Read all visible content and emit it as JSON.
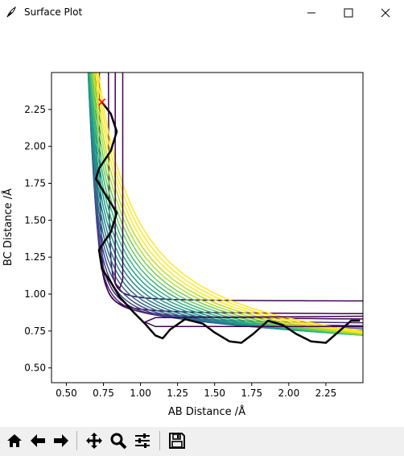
{
  "window": {
    "title": "Surface Plot",
    "icon": "feather-icon"
  },
  "window_controls": [
    "minimize-icon",
    "maximize-icon",
    "close-icon"
  ],
  "toolbar": {
    "buttons": [
      {
        "name": "home-button",
        "icon": "home-icon"
      },
      {
        "name": "back-button",
        "icon": "arrow-left-icon"
      },
      {
        "name": "forward-button",
        "icon": "arrow-right-icon"
      },
      {
        "name": "pan-button",
        "icon": "move-icon"
      },
      {
        "name": "zoom-button",
        "icon": "magnifier-icon"
      },
      {
        "name": "subplots-button",
        "icon": "sliders-icon"
      },
      {
        "name": "save-button",
        "icon": "floppy-disk-icon"
      }
    ]
  },
  "chart_data": {
    "type": "contour",
    "title": "",
    "xlabel": "AB Distance /Å",
    "ylabel": "BC Distance /Å",
    "xlim": [
      0.4,
      2.5
    ],
    "ylim": [
      0.4,
      2.5
    ],
    "xticks": [
      0.5,
      0.75,
      1.0,
      1.25,
      1.5,
      1.75,
      2.0,
      2.25
    ],
    "yticks": [
      0.5,
      0.75,
      1.0,
      1.25,
      1.5,
      1.75,
      2.0,
      2.25
    ],
    "xtick_labels": [
      "0.50",
      "0.75",
      "1.00",
      "1.25",
      "1.50",
      "1.75",
      "2.00",
      "2.25"
    ],
    "ytick_labels": [
      "0.50",
      "0.75",
      "1.00",
      "1.25",
      "1.50",
      "1.75",
      "2.00",
      "2.25"
    ],
    "colormap": [
      "#440154",
      "#482878",
      "#3e4989",
      "#31688e",
      "#26828e",
      "#1f9e89",
      "#35b779",
      "#6ece58",
      "#b5de2b",
      "#fde725"
    ],
    "grid": false,
    "legend": "none",
    "start_marker": {
      "x": 0.74,
      "y": 2.3,
      "symbol": "x",
      "color": "#ff0000"
    },
    "trajectory": {
      "color": "#000000",
      "points": [
        [
          0.74,
          2.3
        ],
        [
          0.8,
          2.22
        ],
        [
          0.84,
          2.1
        ],
        [
          0.8,
          1.97
        ],
        [
          0.72,
          1.85
        ],
        [
          0.7,
          1.78
        ],
        [
          0.76,
          1.68
        ],
        [
          0.84,
          1.55
        ],
        [
          0.8,
          1.42
        ],
        [
          0.72,
          1.3
        ],
        [
          0.74,
          1.17
        ],
        [
          0.8,
          1.08
        ],
        [
          0.86,
          0.98
        ],
        [
          0.95,
          0.88
        ],
        [
          1.03,
          0.8
        ],
        [
          1.1,
          0.72
        ],
        [
          1.15,
          0.7
        ],
        [
          1.2,
          0.76
        ],
        [
          1.3,
          0.83
        ],
        [
          1.42,
          0.8
        ],
        [
          1.5,
          0.74
        ],
        [
          1.6,
          0.68
        ],
        [
          1.68,
          0.67
        ],
        [
          1.76,
          0.73
        ],
        [
          1.86,
          0.82
        ],
        [
          1.96,
          0.79
        ],
        [
          2.05,
          0.73
        ],
        [
          2.15,
          0.68
        ],
        [
          2.25,
          0.67
        ],
        [
          2.33,
          0.74
        ],
        [
          2.42,
          0.82
        ],
        [
          2.48,
          0.82
        ]
      ]
    }
  }
}
